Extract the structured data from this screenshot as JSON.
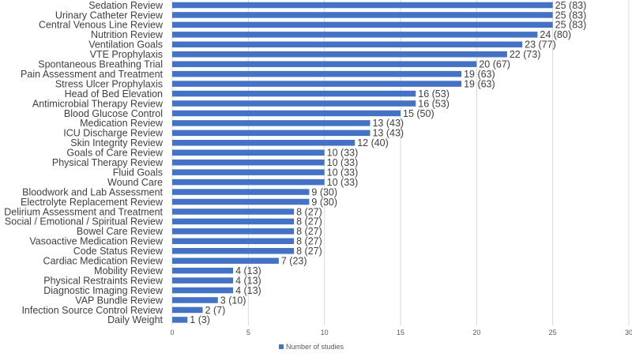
{
  "chart_data": {
    "type": "bar",
    "orientation": "horizontal",
    "categories": [
      "Sedation Review",
      "Urinary Catheter Review",
      "Central Venous Line Review",
      "Nutrition Review",
      "Ventilation Goals",
      "VTE Prophylaxis",
      "Spontaneous Breathing Trial",
      "Pain Assessment and Treatment",
      "Stress Ulcer Prophylaxis",
      "Head of Bed Elevation",
      "Antimicrobial Therapy Review",
      "Blood Glucose Control",
      "Medication Review",
      "ICU Discharge Review",
      "Skin Integrity Review",
      "Goals of Care Review",
      "Physical Therapy Review",
      "Fluid Goals",
      "Wound Care",
      "Bloodwork and Lab Assessment",
      "Electrolyte Replacement Review",
      "Delirium Assessment and Treatment",
      "Social / Emotional / Spiritual Review",
      "Bowel Care Review",
      "Vasoactive Medication Review",
      "Code Status Review",
      "Cardiac Medication Review",
      "Mobility Review",
      "Physical Restraints Review",
      "Diagnostic Imaging Review",
      "VAP Bundle Review",
      "Infection Source Control Review",
      "Daily Weight"
    ],
    "series": [
      {
        "name": "Number of studies",
        "color": "#4472C4",
        "values": [
          25,
          25,
          25,
          24,
          23,
          22,
          20,
          19,
          19,
          16,
          16,
          15,
          13,
          13,
          12,
          10,
          10,
          10,
          10,
          9,
          9,
          8,
          8,
          8,
          8,
          8,
          7,
          4,
          4,
          4,
          3,
          2,
          1
        ]
      }
    ],
    "data_labels": [
      "25 (83)",
      "25 (83)",
      "25 (83)",
      "24 (80)",
      "23 (77)",
      "22 (73)",
      "20 (67)",
      "19 (63)",
      "19 (63)",
      "16 (53)",
      "16 (53)",
      "15 (50)",
      "13 (43)",
      "13 (43)",
      "12 (40)",
      "10 (33)",
      "10 (33)",
      "10 (33)",
      "10 (33)",
      "9 (30)",
      "9 (30)",
      "8 (27)",
      "8 (27)",
      "8 (27)",
      "8 (27)",
      "8 (27)",
      "7 (23)",
      "4 (13)",
      "4 (13)",
      "4 (13)",
      "3 (10)",
      "2 (7)",
      "1 (3)"
    ],
    "x_ticks": [
      "0",
      "5",
      "10",
      "15",
      "20",
      "25",
      "30"
    ],
    "xlim": [
      0,
      30
    ],
    "grid": true,
    "legend_position": "bottom",
    "title": "",
    "xlabel": "",
    "ylabel": ""
  }
}
